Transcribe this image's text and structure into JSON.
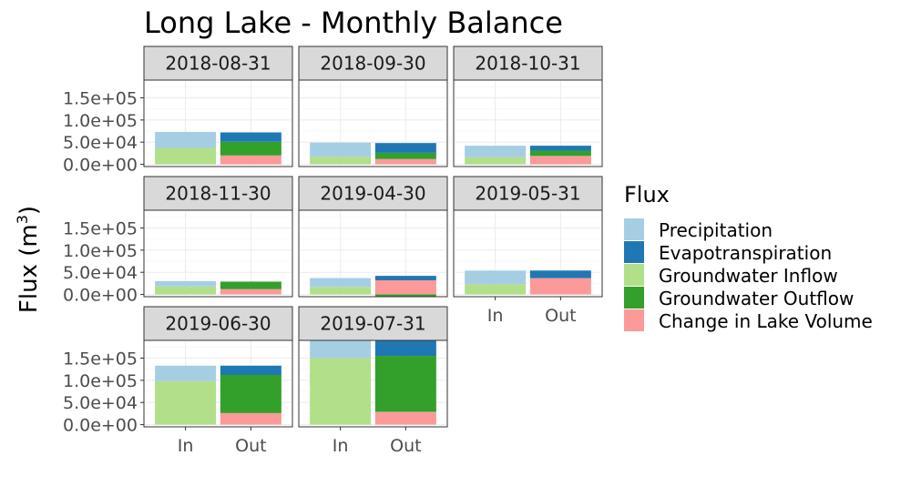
{
  "chart_data": {
    "type": "bar",
    "title": "Long Lake - Monthly Balance",
    "ylabel_base": "Flux (m",
    "ylabel_sup": "3",
    "ylabel_end": ")",
    "xlabel": "",
    "categories": [
      "In",
      "Out"
    ],
    "ylim": [
      -5000,
      190000
    ],
    "yticks": [
      0,
      50000,
      100000,
      150000
    ],
    "ytick_labels": [
      "0.0e+00",
      "5.0e+04",
      "1.0e+05",
      "1.5e+05"
    ],
    "legend": {
      "title": "Flux",
      "placement": "right",
      "items": [
        {
          "key": "Precipitation",
          "label": "Precipitation",
          "color": "#a6cee3"
        },
        {
          "key": "Evapotranspiration",
          "label": "Evapotranspiration",
          "color": "#1f78b4"
        },
        {
          "key": "Groundwater Inflow",
          "label": "Groundwater Inflow",
          "color": "#b2df8a"
        },
        {
          "key": "Groundwater Outflow",
          "label": "Groundwater Outflow",
          "color": "#33a02c"
        },
        {
          "key": "Change in Lake Volume",
          "label": "Change in Lake Volume",
          "color": "#fb9a99"
        }
      ]
    },
    "facets": [
      {
        "label": "2018-08-31",
        "in": [
          {
            "key": "Groundwater Inflow",
            "value": 37000
          },
          {
            "key": "Precipitation",
            "value": 36000
          }
        ],
        "out": [
          {
            "key": "Change in Lake Volume",
            "value": 20000
          },
          {
            "key": "Groundwater Outflow",
            "value": 31000
          },
          {
            "key": "Evapotranspiration",
            "value": 21000
          }
        ]
      },
      {
        "label": "2018-09-30",
        "in": [
          {
            "key": "Groundwater Inflow",
            "value": 17000
          },
          {
            "key": "Precipitation",
            "value": 32000
          }
        ],
        "out": [
          {
            "key": "Change in Lake Volume",
            "value": 12000
          },
          {
            "key": "Groundwater Outflow",
            "value": 14000
          },
          {
            "key": "Evapotranspiration",
            "value": 22000
          }
        ]
      },
      {
        "label": "2018-10-31",
        "in": [
          {
            "key": "Groundwater Inflow",
            "value": 16000
          },
          {
            "key": "Precipitation",
            "value": 26000
          }
        ],
        "out": [
          {
            "key": "Change in Lake Volume",
            "value": 19000
          },
          {
            "key": "Groundwater Outflow",
            "value": 12000
          },
          {
            "key": "Evapotranspiration",
            "value": 11000
          }
        ]
      },
      {
        "label": "2018-11-30",
        "in": [
          {
            "key": "Groundwater Inflow",
            "value": 18000
          },
          {
            "key": "Precipitation",
            "value": 12000
          }
        ],
        "out": [
          {
            "key": "Change in Lake Volume",
            "value": 12000
          },
          {
            "key": "Groundwater Outflow",
            "value": 17000
          }
        ]
      },
      {
        "label": "2019-04-30",
        "in": [
          {
            "key": "Groundwater Inflow",
            "value": 17000
          },
          {
            "key": "Precipitation",
            "value": 20000
          }
        ],
        "out": [
          {
            "key": "Change in Lake Volume",
            "value": 32000
          },
          {
            "key": "Evapotranspiration",
            "value": 10000
          }
        ],
        "out_negative": [
          {
            "key": "Groundwater Outflow",
            "value": -5000
          }
        ]
      },
      {
        "label": "2019-05-31",
        "in": [
          {
            "key": "Groundwater Inflow",
            "value": 23000
          },
          {
            "key": "Precipitation",
            "value": 31000
          }
        ],
        "out": [
          {
            "key": "Change in Lake Volume",
            "value": 37000
          },
          {
            "key": "Evapotranspiration",
            "value": 17000
          }
        ]
      },
      {
        "label": "2019-06-30",
        "in": [
          {
            "key": "Groundwater Inflow",
            "value": 98000
          },
          {
            "key": "Precipitation",
            "value": 35000
          }
        ],
        "out": [
          {
            "key": "Change in Lake Volume",
            "value": 26000
          },
          {
            "key": "Groundwater Outflow",
            "value": 86000
          },
          {
            "key": "Evapotranspiration",
            "value": 21000
          }
        ]
      },
      {
        "label": "2019-07-31",
        "in": [
          {
            "key": "Groundwater Inflow",
            "value": 150000
          },
          {
            "key": "Precipitation",
            "value": 40000
          }
        ],
        "out": [
          {
            "key": "Change in Lake Volume",
            "value": 29000
          },
          {
            "key": "Groundwater Outflow",
            "value": 126000
          },
          {
            "key": "Evapotranspiration",
            "value": 35000
          }
        ]
      }
    ]
  }
}
